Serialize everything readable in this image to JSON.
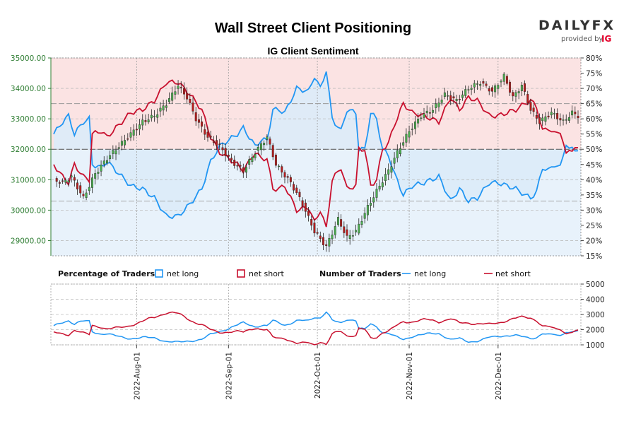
{
  "chart_data": {
    "type": "candlestick-sentiment",
    "title": "Wall Street Client Positioning",
    "subtitle": "IG Client Sentiment",
    "brand": {
      "name": "DAILYFX",
      "provided_by": "provided by",
      "partner": "IG"
    },
    "price_axis": {
      "ylim": [
        28500,
        35000
      ],
      "ticks": [
        29000,
        30000,
        31000,
        32000,
        33000,
        34000,
        35000
      ],
      "tick_labels": [
        "29000.00",
        "30000.00",
        "31000.00",
        "32000.00",
        "33000.00",
        "34000.00",
        "35000.00"
      ]
    },
    "sentiment_axis": {
      "ylim": [
        15,
        80
      ],
      "ticks": [
        15,
        20,
        25,
        30,
        35,
        40,
        45,
        50,
        55,
        60,
        65,
        70,
        75,
        80
      ],
      "tick_labels": [
        "15%",
        "20%",
        "25%",
        "30%",
        "35%",
        "40%",
        "45%",
        "50%",
        "55%",
        "60%",
        "65%",
        "70%",
        "75%",
        "80%"
      ]
    },
    "traders_axis": {
      "ylim": [
        1000,
        5000
      ],
      "ticks": [
        1000,
        2000,
        3000,
        4000,
        5000
      ],
      "tick_labels": [
        "1000",
        "2000",
        "3000",
        "4000",
        "5000"
      ]
    },
    "x_axis": {
      "ticks": [
        {
          "index": 28,
          "label": "2022-Aug-01"
        },
        {
          "index": 59,
          "label": "2022-Sep-01"
        },
        {
          "index": 89,
          "label": "2022-Oct-01"
        },
        {
          "index": 120,
          "label": "2022-Nov-01"
        },
        {
          "index": 150,
          "label": "2022-Dec-01"
        }
      ],
      "n_days": 178
    },
    "colors": {
      "long": "#2196f3",
      "short": "#c8102e",
      "long_bg": "#e8f2fb",
      "short_bg": "#fbe3e3",
      "up": "#4caf50",
      "down": "#b71c1c"
    },
    "legend": {
      "pct_heading": "Percentage of Traders",
      "num_heading": "Number of Traders",
      "net_long": "net long",
      "net_short": "net short"
    },
    "price_anchors": [
      [
        0,
        31000
      ],
      [
        3,
        30900
      ],
      [
        6,
        31100
      ],
      [
        10,
        30400
      ],
      [
        14,
        31200
      ],
      [
        18,
        31700
      ],
      [
        22,
        32100
      ],
      [
        26,
        32500
      ],
      [
        30,
        32900
      ],
      [
        34,
        33100
      ],
      [
        38,
        33500
      ],
      [
        42,
        34100
      ],
      [
        45,
        33700
      ],
      [
        48,
        33000
      ],
      [
        52,
        32400
      ],
      [
        56,
        32100
      ],
      [
        60,
        31600
      ],
      [
        64,
        31300
      ],
      [
        68,
        31900
      ],
      [
        72,
        32400
      ],
      [
        75,
        31500
      ],
      [
        80,
        30900
      ],
      [
        84,
        30200
      ],
      [
        88,
        29300
      ],
      [
        92,
        28800
      ],
      [
        96,
        29700
      ],
      [
        99,
        29100
      ],
      [
        102,
        29300
      ],
      [
        106,
        30100
      ],
      [
        110,
        30800
      ],
      [
        113,
        31300
      ],
      [
        116,
        31900
      ],
      [
        120,
        32600
      ],
      [
        124,
        33100
      ],
      [
        128,
        33300
      ],
      [
        132,
        33800
      ],
      [
        136,
        33600
      ],
      [
        140,
        34000
      ],
      [
        144,
        34200
      ],
      [
        148,
        33900
      ],
      [
        152,
        34400
      ],
      [
        155,
        33700
      ],
      [
        158,
        34100
      ],
      [
        161,
        33300
      ],
      [
        164,
        32900
      ],
      [
        168,
        33200
      ],
      [
        172,
        32900
      ],
      [
        175,
        33200
      ],
      [
        177,
        33100
      ]
    ],
    "long_pct_anchors": [
      [
        0,
        55
      ],
      [
        3,
        59
      ],
      [
        5,
        61
      ],
      [
        7,
        55
      ],
      [
        10,
        59
      ],
      [
        12,
        60
      ],
      [
        13,
        45
      ],
      [
        16,
        44
      ],
      [
        18,
        46
      ],
      [
        22,
        42
      ],
      [
        26,
        38
      ],
      [
        30,
        37
      ],
      [
        34,
        34
      ],
      [
        38,
        28
      ],
      [
        42,
        28
      ],
      [
        46,
        32
      ],
      [
        50,
        37
      ],
      [
        53,
        46
      ],
      [
        56,
        51
      ],
      [
        59,
        53
      ],
      [
        62,
        55
      ],
      [
        64,
        57
      ],
      [
        66,
        54
      ],
      [
        68,
        51
      ],
      [
        70,
        53
      ],
      [
        72,
        53
      ],
      [
        74,
        63
      ],
      [
        76,
        63
      ],
      [
        78,
        62
      ],
      [
        82,
        70
      ],
      [
        86,
        69
      ],
      [
        88,
        74
      ],
      [
        90,
        70
      ],
      [
        92,
        76
      ],
      [
        94,
        60
      ],
      [
        97,
        56
      ],
      [
        99,
        63
      ],
      [
        102,
        62
      ],
      [
        103,
        50
      ],
      [
        105,
        50
      ],
      [
        107,
        62
      ],
      [
        109,
        60
      ],
      [
        111,
        50
      ],
      [
        113,
        48
      ],
      [
        115,
        42
      ],
      [
        118,
        35
      ],
      [
        121,
        38
      ],
      [
        125,
        39
      ],
      [
        130,
        41
      ],
      [
        134,
        33
      ],
      [
        137,
        37
      ],
      [
        140,
        33
      ],
      [
        143,
        34
      ],
      [
        147,
        39
      ],
      [
        150,
        39
      ],
      [
        153,
        38
      ],
      [
        156,
        37
      ],
      [
        159,
        35
      ],
      [
        161,
        34
      ],
      [
        163,
        36
      ],
      [
        165,
        44
      ],
      [
        167,
        43
      ],
      [
        169,
        45
      ],
      [
        171,
        44
      ],
      [
        173,
        52
      ],
      [
        174,
        50
      ],
      [
        175,
        50
      ],
      [
        177,
        50
      ]
    ]
  }
}
